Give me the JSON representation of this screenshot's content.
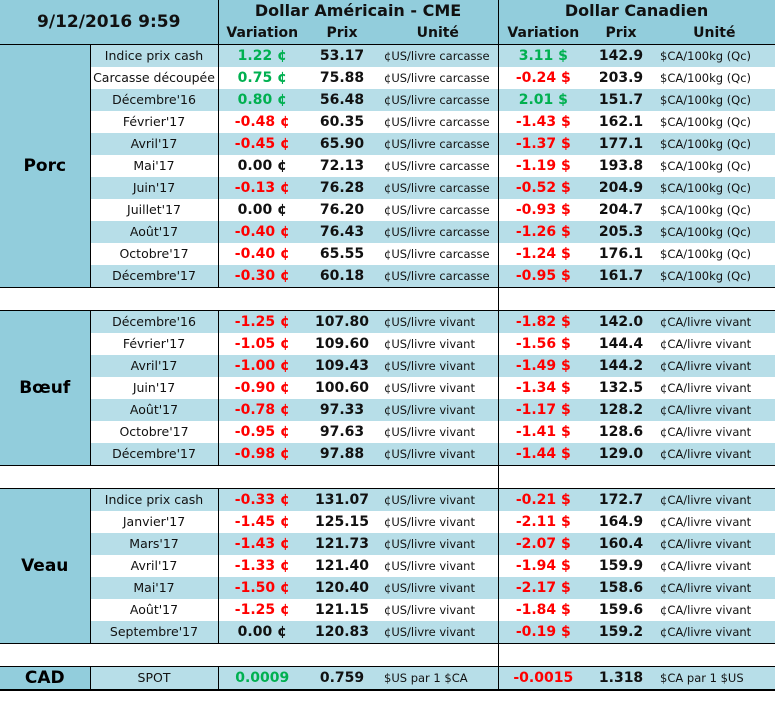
{
  "header": {
    "datetime": "9/12/2016 9:59",
    "usd_group": "Dollar Américain - CME",
    "cad_group": "Dollar Canadien",
    "col_variation": "Variation",
    "col_prix": "Prix",
    "col_unite": "Unité"
  },
  "colors": {
    "header_bg": "#92cddc",
    "row_light": "#b7dee8",
    "positive": "#00b050",
    "negative": "#ff0000"
  },
  "sections": [
    {
      "name": "Porc",
      "rows": [
        {
          "label": "Indice prix cash",
          "us_var": "1.22 ¢",
          "us_price": "53.17",
          "us_unit": "¢US/livre carcasse",
          "ca_var": "3.11 $",
          "ca_price": "142.9",
          "ca_unit": "$CA/100kg (Qc)"
        },
        {
          "label": "Carcasse découpée",
          "us_var": "0.75 ¢",
          "us_price": "75.88",
          "us_unit": "¢US/livre carcasse",
          "ca_var": "-0.24 $",
          "ca_price": "203.9",
          "ca_unit": "$CA/100kg (Qc)"
        },
        {
          "label": "Décembre'16",
          "us_var": "0.80 ¢",
          "us_price": "56.48",
          "us_unit": "¢US/livre carcasse",
          "ca_var": "2.01 $",
          "ca_price": "151.7",
          "ca_unit": "$CA/100kg (Qc)"
        },
        {
          "label": "Février'17",
          "us_var": "-0.48 ¢",
          "us_price": "60.35",
          "us_unit": "¢US/livre carcasse",
          "ca_var": "-1.43 $",
          "ca_price": "162.1",
          "ca_unit": "$CA/100kg (Qc)"
        },
        {
          "label": "Avril'17",
          "us_var": "-0.45 ¢",
          "us_price": "65.90",
          "us_unit": "¢US/livre carcasse",
          "ca_var": "-1.37 $",
          "ca_price": "177.1",
          "ca_unit": "$CA/100kg (Qc)"
        },
        {
          "label": "Mai'17",
          "us_var": "0.00 ¢",
          "us_price": "72.13",
          "us_unit": "¢US/livre carcasse",
          "ca_var": "-1.19 $",
          "ca_price": "193.8",
          "ca_unit": "$CA/100kg (Qc)"
        },
        {
          "label": "Juin'17",
          "us_var": "-0.13 ¢",
          "us_price": "76.28",
          "us_unit": "¢US/livre carcasse",
          "ca_var": "-0.52 $",
          "ca_price": "204.9",
          "ca_unit": "$CA/100kg (Qc)"
        },
        {
          "label": "Juillet'17",
          "us_var": "0.00 ¢",
          "us_price": "76.20",
          "us_unit": "¢US/livre carcasse",
          "ca_var": "-0.93 $",
          "ca_price": "204.7",
          "ca_unit": "$CA/100kg (Qc)"
        },
        {
          "label": "Août'17",
          "us_var": "-0.40 ¢",
          "us_price": "76.43",
          "us_unit": "¢US/livre carcasse",
          "ca_var": "-1.26 $",
          "ca_price": "205.3",
          "ca_unit": "$CA/100kg (Qc)"
        },
        {
          "label": "Octobre'17",
          "us_var": "-0.40 ¢",
          "us_price": "65.55",
          "us_unit": "¢US/livre carcasse",
          "ca_var": "-1.24 $",
          "ca_price": "176.1",
          "ca_unit": "$CA/100kg (Qc)"
        },
        {
          "label": "Décembre'17",
          "us_var": "-0.30 ¢",
          "us_price": "60.18",
          "us_unit": "¢US/livre carcasse",
          "ca_var": "-0.95 $",
          "ca_price": "161.7",
          "ca_unit": "$CA/100kg (Qc)"
        }
      ]
    },
    {
      "name": "Bœuf",
      "rows": [
        {
          "label": "Décembre'16",
          "us_var": "-1.25 ¢",
          "us_price": "107.80",
          "us_unit": "¢US/livre vivant",
          "ca_var": "-1.82 $",
          "ca_price": "142.0",
          "ca_unit": "¢CA/livre vivant"
        },
        {
          "label": "Février'17",
          "us_var": "-1.05 ¢",
          "us_price": "109.60",
          "us_unit": "¢US/livre vivant",
          "ca_var": "-1.56 $",
          "ca_price": "144.4",
          "ca_unit": "¢CA/livre vivant"
        },
        {
          "label": "Avril'17",
          "us_var": "-1.00 ¢",
          "us_price": "109.43",
          "us_unit": "¢US/livre vivant",
          "ca_var": "-1.49 $",
          "ca_price": "144.2",
          "ca_unit": "¢CA/livre vivant"
        },
        {
          "label": "Juin'17",
          "us_var": "-0.90 ¢",
          "us_price": "100.60",
          "us_unit": "¢US/livre vivant",
          "ca_var": "-1.34 $",
          "ca_price": "132.5",
          "ca_unit": "¢CA/livre vivant"
        },
        {
          "label": "Août'17",
          "us_var": "-0.78 ¢",
          "us_price": "97.33",
          "us_unit": "¢US/livre vivant",
          "ca_var": "-1.17 $",
          "ca_price": "128.2",
          "ca_unit": "¢CA/livre vivant"
        },
        {
          "label": "Octobre'17",
          "us_var": "-0.95 ¢",
          "us_price": "97.63",
          "us_unit": "¢US/livre vivant",
          "ca_var": "-1.41 $",
          "ca_price": "128.6",
          "ca_unit": "¢CA/livre vivant"
        },
        {
          "label": "Décembre'17",
          "us_var": "-0.98 ¢",
          "us_price": "97.88",
          "us_unit": "¢US/livre vivant",
          "ca_var": "-1.44 $",
          "ca_price": "129.0",
          "ca_unit": "¢CA/livre vivant"
        }
      ]
    },
    {
      "name": "Veau",
      "rows": [
        {
          "label": "Indice prix cash",
          "us_var": "-0.33 ¢",
          "us_price": "131.07",
          "us_unit": "¢US/livre vivant",
          "ca_var": "-0.21 $",
          "ca_price": "172.7",
          "ca_unit": "¢CA/livre vivant"
        },
        {
          "label": "Janvier'17",
          "us_var": "-1.45 ¢",
          "us_price": "125.15",
          "us_unit": "¢US/livre vivant",
          "ca_var": "-2.11 $",
          "ca_price": "164.9",
          "ca_unit": "¢CA/livre vivant"
        },
        {
          "label": "Mars'17",
          "us_var": "-1.43 ¢",
          "us_price": "121.73",
          "us_unit": "¢US/livre vivant",
          "ca_var": "-2.07 $",
          "ca_price": "160.4",
          "ca_unit": "¢CA/livre vivant"
        },
        {
          "label": "Avril'17",
          "us_var": "-1.33 ¢",
          "us_price": "121.40",
          "us_unit": "¢US/livre vivant",
          "ca_var": "-1.94 $",
          "ca_price": "159.9",
          "ca_unit": "¢CA/livre vivant"
        },
        {
          "label": "Mai'17",
          "us_var": "-1.50 ¢",
          "us_price": "120.40",
          "us_unit": "¢US/livre vivant",
          "ca_var": "-2.17 $",
          "ca_price": "158.6",
          "ca_unit": "¢CA/livre vivant"
        },
        {
          "label": "Août'17",
          "us_var": "-1.25 ¢",
          "us_price": "121.15",
          "us_unit": "¢US/livre vivant",
          "ca_var": "-1.84 $",
          "ca_price": "159.6",
          "ca_unit": "¢CA/livre vivant"
        },
        {
          "label": "Septembre'17",
          "us_var": "0.00 ¢",
          "us_price": "120.83",
          "us_unit": "¢US/livre vivant",
          "ca_var": "-0.19 $",
          "ca_price": "159.2",
          "ca_unit": "¢CA/livre vivant"
        }
      ]
    },
    {
      "name": "CAD",
      "rows": [
        {
          "label": "SPOT",
          "us_var": "0.0009",
          "us_price": "0.759",
          "us_unit": "$US par 1 $CA",
          "ca_var": "-0.0015",
          "ca_price": "1.318",
          "ca_unit": "$CA par 1 $US"
        }
      ]
    }
  ]
}
